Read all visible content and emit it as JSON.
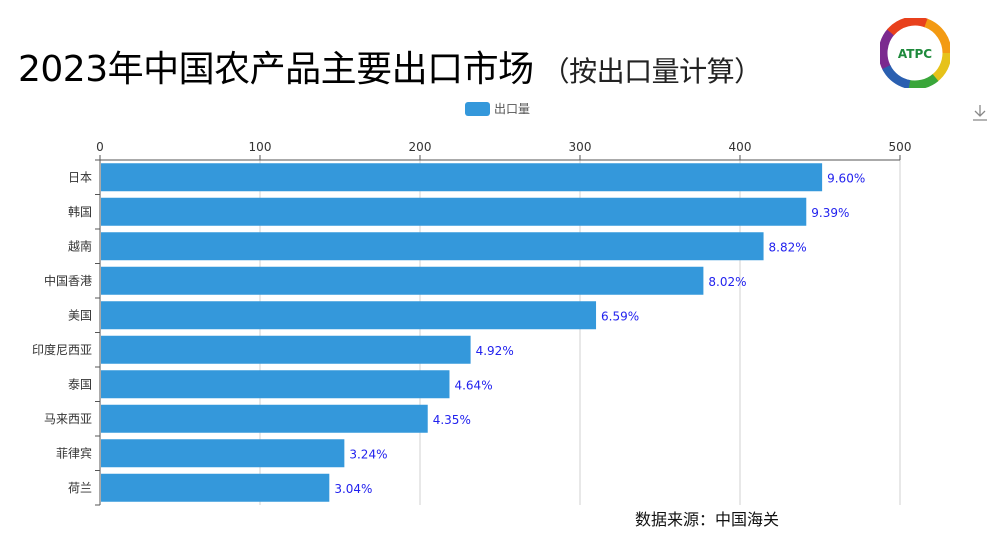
{
  "header": {
    "title": "2023年中国农产品主要出口市场",
    "subtitle": "（按出口量计算）",
    "logo_text": "ATPC"
  },
  "toolbar": {
    "download_icon": "download-icon"
  },
  "source": "数据来源：中国海关",
  "chart_data": {
    "type": "bar",
    "orientation": "horizontal",
    "categories": [
      "日本",
      "韩国",
      "越南",
      "中国香港",
      "美国",
      "印度尼西亚",
      "泰国",
      "马来西亚",
      "菲律宾",
      "荷兰"
    ],
    "series": [
      {
        "name": "出口量",
        "values": [
          450.7,
          440.8,
          414.1,
          376.5,
          309.4,
          231.0,
          217.8,
          204.2,
          152.1,
          142.7
        ],
        "labels": [
          "9.60%",
          "9.39%",
          "8.82%",
          "8.02%",
          "6.59%",
          "4.92%",
          "4.64%",
          "4.35%",
          "3.24%",
          "3.04%"
        ],
        "color": "#3498db"
      }
    ],
    "xlim": [
      0,
      500
    ],
    "xticks": [
      "0",
      "100",
      "200",
      "300",
      "400",
      "500"
    ],
    "x_axis_position": "top",
    "grid": true,
    "legend": "top-center",
    "label_color": "#2222ee"
  }
}
